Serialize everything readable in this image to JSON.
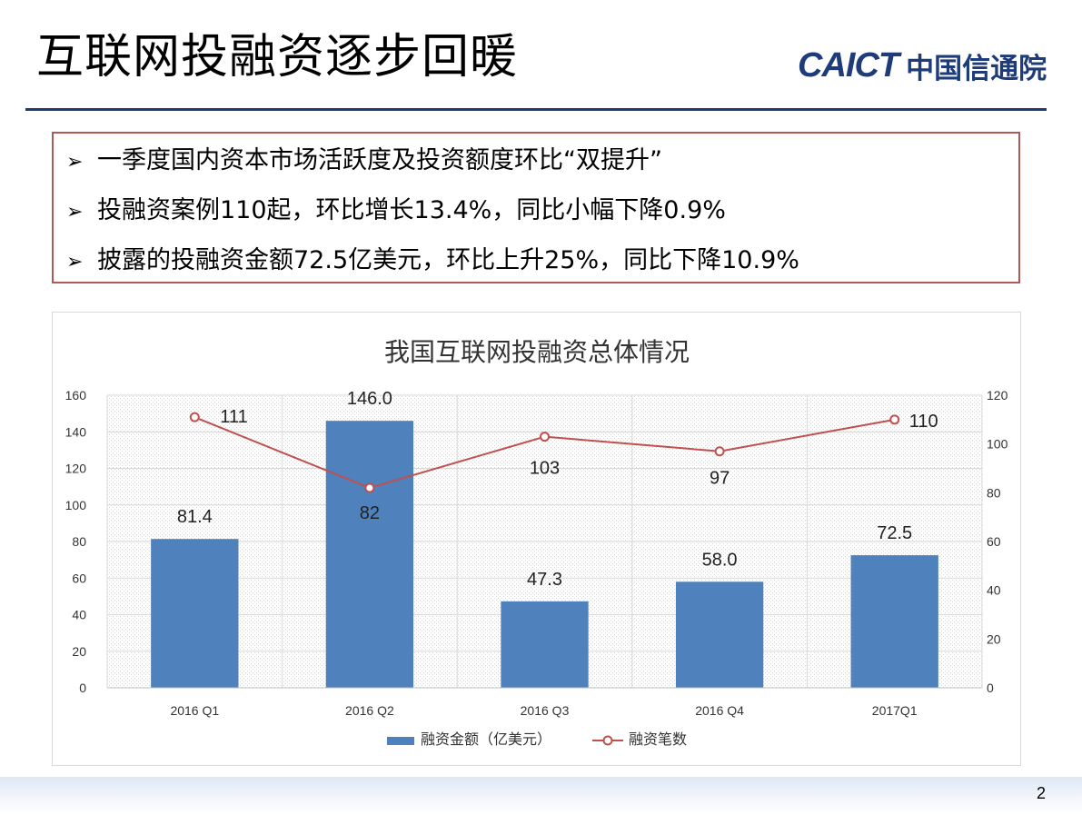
{
  "slide": {
    "title": "互联网投融资逐步回暖",
    "logo_en": "CAICT",
    "logo_cn": "中国信通院",
    "page_number": "2"
  },
  "bullets": [
    "一季度国内资本市场活跃度及投资额度环比“双提升”",
    "投融资案例110起，环比增长13.4%，同比小幅下降0.9%",
    "披露的投融资金额72.5亿美元，环比上升25%，同比下降10.9%"
  ],
  "colors": {
    "bar": "#4f81bd",
    "line": "#c0504d",
    "title_rule": "#1f3c6a",
    "box_border": "#b25856",
    "logo": "#1f3c7a"
  },
  "chart_data": {
    "type": "bar",
    "title": "我国互联网投融资总体情况",
    "categories": [
      "2016 Q1",
      "2016 Q2",
      "2016 Q3",
      "2016 Q4",
      "2017Q1"
    ],
    "series": [
      {
        "name": "融资金额（亿美元）",
        "type": "bar",
        "axis": "left",
        "values": [
          81.4,
          146.0,
          47.3,
          58.0,
          72.5
        ],
        "labels": [
          "81.4",
          "146.0",
          "47.3",
          "58.0",
          "72.5"
        ]
      },
      {
        "name": "融资笔数",
        "type": "line",
        "axis": "right",
        "values": [
          111,
          82,
          103,
          97,
          110
        ],
        "labels": [
          "111",
          "82",
          "103",
          "97",
          "110"
        ]
      }
    ],
    "y_left": {
      "min": 0,
      "max": 160,
      "ticks": [
        "0",
        "20",
        "40",
        "60",
        "80",
        "100",
        "120",
        "140",
        "160"
      ]
    },
    "y_right": {
      "min": 0,
      "max": 120,
      "ticks": [
        "0",
        "20",
        "40",
        "60",
        "80",
        "100",
        "120"
      ]
    },
    "grid": true,
    "legend": "bottom"
  }
}
